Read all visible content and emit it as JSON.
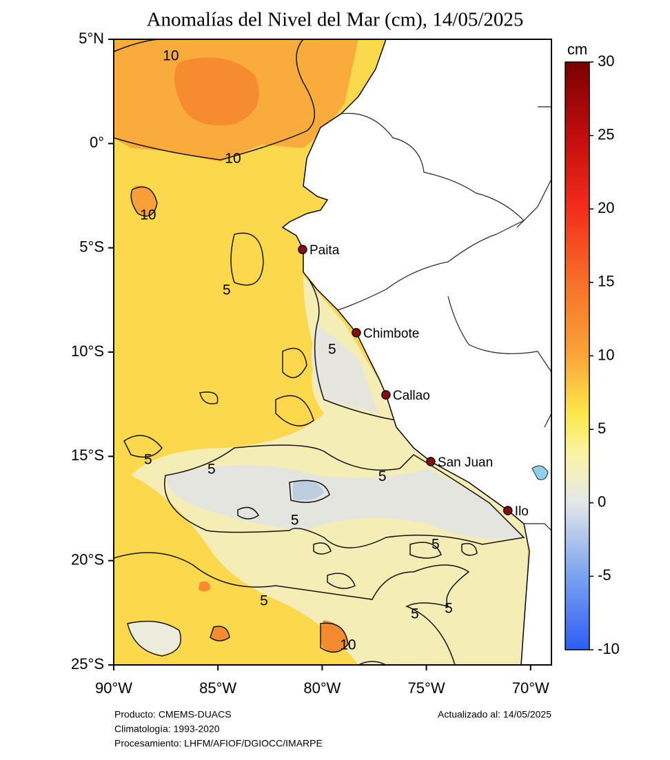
{
  "map": {
    "title": "Anomalías del Nivel del Mar (cm), 14/05/2025",
    "lonlim": [
      -90,
      -69
    ],
    "latlim": [
      -25,
      5
    ],
    "lonticks": [
      {
        "value": -90,
        "label": "90°W"
      },
      {
        "value": -85,
        "label": "85°W"
      },
      {
        "value": -80,
        "label": "80°W"
      },
      {
        "value": -75,
        "label": "75°W"
      },
      {
        "value": -70,
        "label": "70°W"
      }
    ],
    "latticks": [
      {
        "value": 5,
        "label": "5°N"
      },
      {
        "value": 0,
        "label": "0°"
      },
      {
        "value": -5,
        "label": "5°S"
      },
      {
        "value": -10,
        "label": "10°S"
      },
      {
        "value": -15,
        "label": "15°S"
      },
      {
        "value": -20,
        "label": "20°S"
      },
      {
        "value": -25,
        "label": "25°S"
      }
    ],
    "colorbar": {
      "unit": "cm",
      "clim": [
        -10,
        30
      ],
      "ticks": [
        30,
        25,
        20,
        15,
        10,
        5,
        0,
        -5,
        -10
      ]
    },
    "cities": [
      {
        "name": "Paita",
        "lon": -80.94,
        "lat": -5.08
      },
      {
        "name": "Chimbote",
        "lon": -78.36,
        "lat": -9.07
      },
      {
        "name": "Callao",
        "lon": -76.94,
        "lat": -12.05
      },
      {
        "name": "San Juan",
        "lon": -74.79,
        "lat": -15.25
      },
      {
        "name": "Ilo",
        "lon": -71.09,
        "lat": -17.6
      }
    ],
    "contour_labels": [
      {
        "value": 10,
        "lon": -87.26,
        "lat": 4.17
      },
      {
        "value": 10,
        "lon": -84.28,
        "lat": -0.75
      },
      {
        "value": 10,
        "lon": -88.35,
        "lat": -3.46
      },
      {
        "value": 5,
        "lon": -84.58,
        "lat": -7.06
      },
      {
        "value": 5,
        "lon": -79.52,
        "lat": -9.9
      },
      {
        "value": 5,
        "lon": -88.35,
        "lat": -15.18
      },
      {
        "value": 5,
        "lon": -85.31,
        "lat": -15.65
      },
      {
        "value": 5,
        "lon": -77.11,
        "lat": -16.0
      },
      {
        "value": 5,
        "lon": -81.31,
        "lat": -18.09
      },
      {
        "value": 5,
        "lon": -74.56,
        "lat": -19.25
      },
      {
        "value": 5,
        "lon": -82.79,
        "lat": -21.96
      },
      {
        "value": 5,
        "lon": -75.55,
        "lat": -22.58
      },
      {
        "value": 5,
        "lon": -73.93,
        "lat": -22.32
      },
      {
        "value": 10,
        "lon": -78.76,
        "lat": -24.07
      }
    ],
    "footer": {
      "product": "Producto: CMEMS-DUACS",
      "climatology": "Climatología: 1993-2020",
      "processing": "Procesamiento: LHFM/AFIOF/DGIOCC/IMARPE",
      "updated": "Actualizado al: 14/05/2025"
    }
  }
}
